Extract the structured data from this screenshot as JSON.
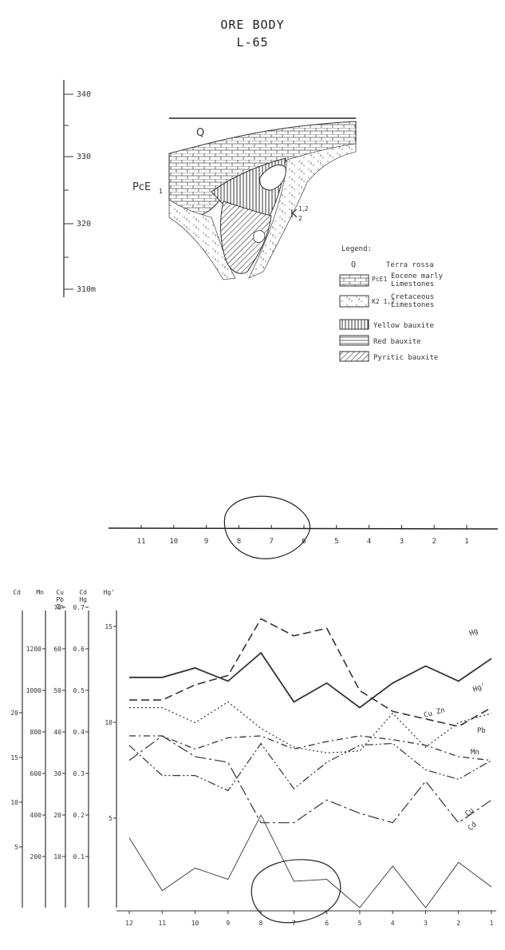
{
  "header": {
    "title": "ORE BODY",
    "subtitle": "L-65"
  },
  "section": {
    "scale_ticks": [
      {
        "label": "340"
      },
      {
        "label": "330"
      },
      {
        "label": "320"
      },
      {
        "label": "310m"
      }
    ],
    "labels": {
      "q": "Q",
      "pce": "PcE",
      "pce_sub": "1",
      "k": "K",
      "k_sup": "1,2",
      "k_sub": "2"
    }
  },
  "legend": {
    "title": "Legend:",
    "items": [
      {
        "symbol": "Q",
        "text1": "Terra rossa",
        "text2": ""
      },
      {
        "symbol": "PcE1",
        "text1": "Eocene marly",
        "text2": "Limestones"
      },
      {
        "symbol": "K2 1,2",
        "text1": "Cretaceous",
        "text2": "Limestones"
      },
      {
        "symbol": "",
        "text1": "Yellow bauxite",
        "text2": ""
      },
      {
        "symbol": "",
        "text1": "Red bauxite",
        "text2": ""
      },
      {
        "symbol": "",
        "text1": "Pyritic bauxite",
        "text2": ""
      }
    ]
  },
  "profile_axis": {
    "ticks": [
      "11",
      "10",
      "9",
      "8",
      "7",
      "6",
      "5",
      "4",
      "3",
      "2",
      "1"
    ]
  },
  "chart_data": {
    "type": "line",
    "x": [
      12,
      11,
      10,
      9,
      8,
      7,
      6,
      5,
      4,
      3,
      2,
      1
    ],
    "x_ticks": [
      "12",
      "11",
      "10",
      "9",
      "8",
      "7",
      "6",
      "5",
      "4",
      "3",
      "2",
      "1"
    ],
    "axes": [
      {
        "label": "Cd",
        "ticks": [
          "5",
          "10",
          "15",
          "20"
        ]
      },
      {
        "label": "Mn",
        "ticks": [
          "200",
          "400",
          "600",
          "800",
          "1000",
          "1200"
        ]
      },
      {
        "label": "Cu\nPb\nZn",
        "ticks": [
          "10",
          "20",
          "30",
          "40",
          "50",
          "60",
          "70"
        ]
      },
      {
        "label": "Cd\nHg",
        "ticks": [
          "0.1",
          "0.2",
          "0.3",
          "0.4",
          "0.5",
          "0.6",
          "0.7"
        ]
      },
      {
        "label": "Hg'",
        "ticks": [
          "5",
          "10",
          "15"
        ]
      }
    ],
    "ylim": [
      0,
      16
    ],
    "series": [
      {
        "name": "Hg",
        "style": "solid",
        "values": [
          12.2,
          12.2,
          12.7,
          12.0,
          13.5,
          10.9,
          11.9,
          10.6,
          11.9,
          12.8,
          12.0,
          13.2
        ]
      },
      {
        "name": "Hg'",
        "style": "dash",
        "values": [
          11.0,
          11.0,
          11.8,
          12.3,
          15.3,
          14.4,
          14.8,
          11.5,
          10.4,
          10.0,
          9.6,
          10.6
        ]
      },
      {
        "name": "Cu Zn",
        "style": "dot",
        "values": [
          10.6,
          10.6,
          9.8,
          10.9,
          9.5,
          8.5,
          8.2,
          8.3,
          10.3,
          8.5,
          9.8,
          10.3
        ]
      },
      {
        "name": "Pb",
        "style": "dashdot",
        "values": [
          9.1,
          9.1,
          8.4,
          9.0,
          9.1,
          8.4,
          8.8,
          9.1,
          8.9,
          8.6,
          8.0,
          7.8
        ]
      },
      {
        "name": "Mn",
        "style": "dashdotdot",
        "values": [
          8.6,
          7.0,
          7.0,
          6.2,
          8.7,
          6.3,
          7.7,
          8.6,
          8.7,
          7.3,
          6.8,
          7.8
        ]
      },
      {
        "name": "Cu",
        "style": "longdash",
        "values": [
          7.8,
          9.1,
          8.0,
          7.7,
          4.5,
          4.5,
          5.7,
          5.0,
          4.5,
          6.7,
          4.5,
          5.7
        ]
      },
      {
        "name": "Cd",
        "style": "thin",
        "values": [
          3.7,
          0.9,
          2.1,
          1.5,
          4.9,
          1.4,
          1.5,
          0.0,
          2.2,
          0.0,
          2.4,
          1.1
        ]
      }
    ]
  }
}
